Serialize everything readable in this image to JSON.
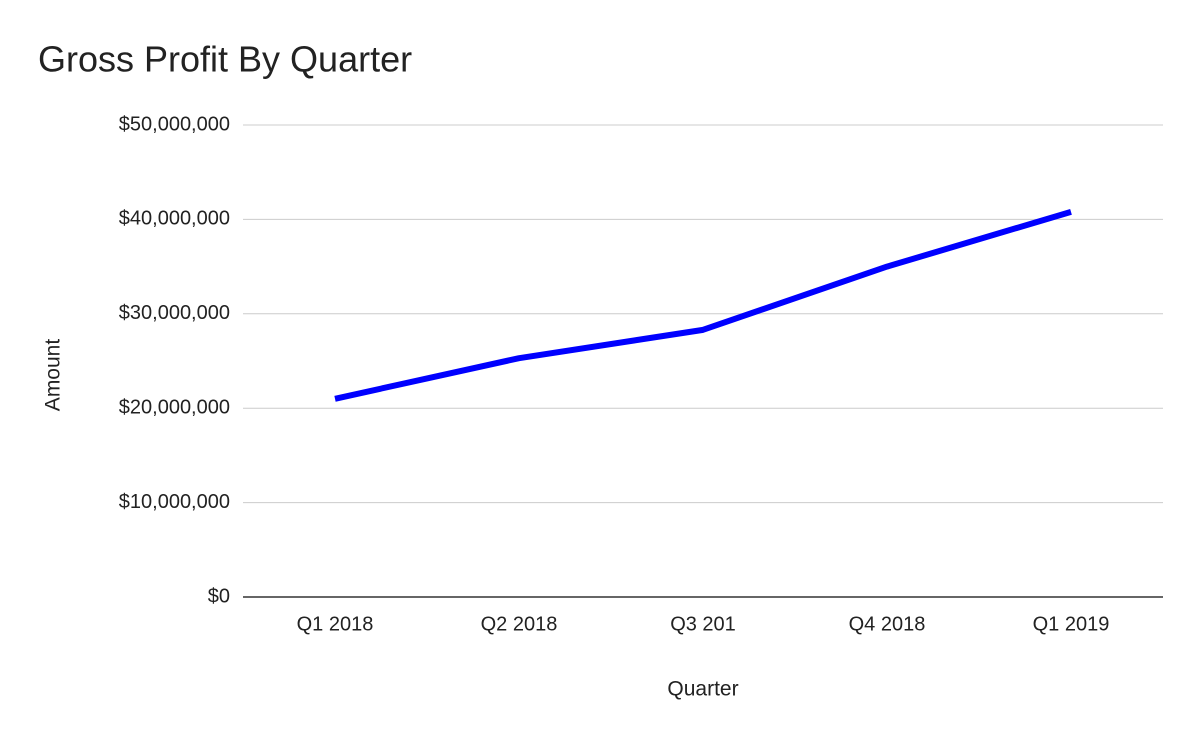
{
  "chart_data": {
    "type": "line",
    "title": "Gross Profit By Quarter",
    "x_label": "Quarter",
    "y_label": "Amount",
    "categories": [
      "Q1 2018",
      "Q2 2018",
      "Q3 201",
      "Q4 2018",
      "Q1 2019"
    ],
    "series": [
      {
        "name": "Gross Profit",
        "color": "#0000ff",
        "values": [
          21000000,
          25300000,
          28300000,
          35000000,
          40800000
        ]
      }
    ],
    "ylim": [
      0,
      50000000
    ],
    "yticks": [
      {
        "value": 0,
        "label": "$0"
      },
      {
        "value": 10000000,
        "label": "$10,000,000"
      },
      {
        "value": 20000000,
        "label": "$20,000,000"
      },
      {
        "value": 30000000,
        "label": "$30,000,000"
      },
      {
        "value": 40000000,
        "label": "$40,000,000"
      },
      {
        "value": 50000000,
        "label": "$50,000,000"
      }
    ],
    "grid": true
  }
}
